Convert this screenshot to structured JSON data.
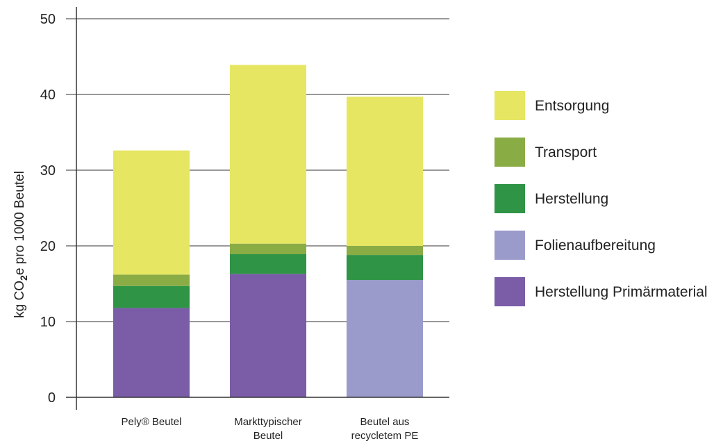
{
  "chart_data": {
    "type": "bar",
    "stacked": true,
    "title": "",
    "xlabel": "",
    "ylabel_parts": [
      "kg CO",
      "2",
      "e pro 1000 Beutel"
    ],
    "ylim": [
      0,
      50
    ],
    "yticks": [
      0,
      10,
      20,
      30,
      40,
      50
    ],
    "grid": true,
    "legend_position": "right",
    "categories": [
      [
        "Pely® Beutel"
      ],
      [
        "Markttypischer",
        "Beutel"
      ],
      [
        "Beutel aus",
        "recycletem PE"
      ]
    ],
    "series": [
      {
        "name": "Herstellung Primärmaterial",
        "color": "#7b5ca6",
        "values": [
          11.8,
          16.3,
          0
        ]
      },
      {
        "name": "Folienaufbereitung",
        "color": "#9a9bcb",
        "values": [
          0,
          0,
          15.5
        ]
      },
      {
        "name": "Herstellung",
        "color": "#2f9446",
        "values": [
          2.9,
          2.6,
          3.3
        ]
      },
      {
        "name": "Transport",
        "color": "#8aac45",
        "values": [
          1.5,
          1.4,
          1.2
        ]
      },
      {
        "name": "Entsorgung",
        "color": "#e6e662",
        "values": [
          16.4,
          23.6,
          19.7
        ]
      }
    ],
    "legend_order": [
      "Entsorgung",
      "Transport",
      "Herstellung",
      "Folienaufbereitung",
      "Herstellung Primärmaterial"
    ]
  }
}
